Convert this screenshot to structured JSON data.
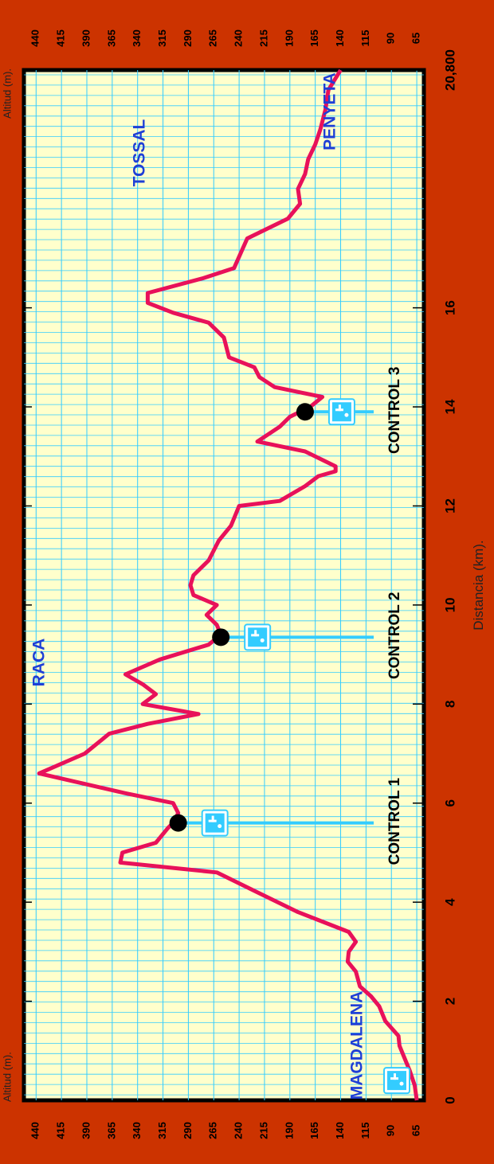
{
  "colors": {
    "background": "#cc3300",
    "plot_area": "#ffffcc",
    "grid": "#33ccff",
    "profile": "#e8115a",
    "label_blue": "#1f3fd6",
    "water_marker": "#33ccff"
  },
  "chart_data": {
    "type": "line",
    "orientation": "rotated 90 degrees (distance runs bottom to top, altitude runs right to left)",
    "xlabel": "Distancia (km).",
    "ylabel": "Altitud (m).",
    "xlim": [
      0,
      20.8
    ],
    "ylim": [
      58,
      452
    ],
    "x_ticks": [
      "0",
      "2",
      "4",
      "6",
      "8",
      "10",
      "12",
      "14",
      "16",
      "20,800"
    ],
    "x_tick_values": [
      0,
      2,
      4,
      6,
      8,
      10,
      12,
      14,
      16,
      20.8
    ],
    "y_ticks": [
      "65",
      "90",
      "115",
      "140",
      "165",
      "190",
      "215",
      "240",
      "265",
      "290",
      "315",
      "340",
      "365",
      "390",
      "415",
      "440"
    ],
    "y_tick_values": [
      65,
      90,
      115,
      140,
      165,
      190,
      215,
      240,
      265,
      290,
      315,
      340,
      365,
      390,
      415,
      440
    ],
    "grid": true,
    "series": [
      {
        "x": [
          0,
          0.3,
          0.6,
          0.9,
          1.1,
          1.3,
          1.6,
          1.9,
          2.1,
          2.3,
          2.6,
          2.8,
          3.0,
          3.2,
          3.4,
          3.8,
          4.2,
          4.6,
          4.8,
          5.0,
          5.2,
          5.5,
          5.6,
          5.8,
          6.0,
          6.2,
          6.6,
          7.0,
          7.4,
          7.6,
          7.8,
          8.0,
          8.2,
          8.4,
          8.6,
          8.9,
          9.2,
          9.4,
          9.6,
          9.8,
          10.0,
          10.2,
          10.4,
          10.6,
          10.9,
          11.3,
          11.6,
          11.8,
          12.0,
          12.1,
          12.4,
          12.6,
          12.7,
          12.8,
          13.1,
          13.3,
          13.6,
          13.8,
          14.0,
          14.2,
          14.4,
          14.6,
          14.8,
          15.0,
          15.4,
          15.7,
          15.9,
          16.1,
          16.3,
          16.6,
          16.8,
          17.4,
          17.8,
          18.1,
          18.4,
          18.7,
          19.0,
          19.3,
          19.6,
          20.0,
          20.4,
          20.8
        ],
        "y": [
          65,
          67,
          72,
          78,
          82,
          83,
          96,
          102,
          110,
          121,
          125,
          133,
          132,
          125,
          132,
          182,
          222,
          262,
          357,
          355,
          322,
          310,
          305,
          300,
          305,
          352,
          437,
          392,
          368,
          330,
          280,
          335,
          322,
          335,
          352,
          318,
          270,
          258,
          262,
          272,
          262,
          285,
          288,
          285,
          270,
          260,
          248,
          244,
          240,
          200,
          175,
          162,
          145,
          145,
          175,
          222,
          200,
          190,
          170,
          158,
          205,
          220,
          225,
          250,
          255,
          270,
          305,
          330,
          330,
          275,
          245,
          232,
          192,
          180,
          182,
          175,
          172,
          165,
          160,
          155,
          152,
          140
        ]
      }
    ],
    "place_labels": [
      {
        "text": "MAGDALENA",
        "x": 0.4,
        "y": 90
      },
      {
        "text": "RACA",
        "x": 6.6,
        "y": 437
      },
      {
        "text": "TOSSAL",
        "x": 16.3,
        "y": 330
      },
      {
        "text": "PENYETA",
        "x": 20.2,
        "y": 143
      }
    ],
    "controls": [
      {
        "label": "CONTROL 1",
        "x": 5.6,
        "y": 300
      },
      {
        "label": "CONTROL 2",
        "x": 9.35,
        "y": 258
      },
      {
        "label": "CONTROL 3",
        "x": 13.9,
        "y": 175
      }
    ],
    "water_points_km": [
      0.4,
      5.6,
      9.35,
      13.9
    ]
  }
}
